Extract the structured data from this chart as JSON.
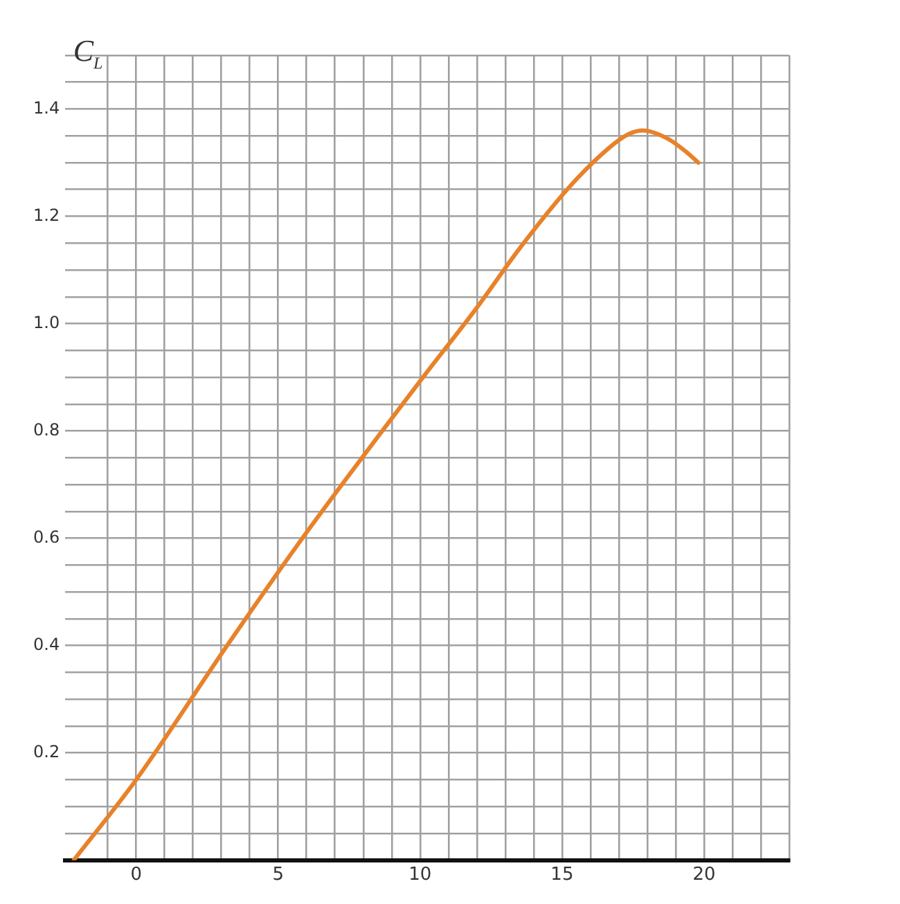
{
  "chart_data": {
    "type": "line",
    "ylabel": "C$_{L}$",
    "x": [
      -2.2,
      0,
      3.2,
      5.85,
      10.1,
      12,
      13.5,
      15.26,
      16.64,
      17.33,
      17.85,
      18.71,
      19.4,
      19.8
    ],
    "series": [
      {
        "color": "#e8822a",
        "values": [
          0,
          0.15,
          0.4,
          0.6,
          0.9,
          1.03,
          1.14,
          1.255,
          1.327,
          1.353,
          1.36,
          1.345,
          1.319,
          1.3
        ]
      }
    ],
    "xlim": [
      -2.5,
      23
    ],
    "xticks": [
      {
        "value": -1,
        "label": null
      },
      0,
      {
        "value": 1,
        "label": null
      },
      {
        "value": 2,
        "label": null
      },
      {
        "value": 3,
        "label": null
      },
      {
        "value": 4,
        "label": null
      },
      5,
      {
        "value": 6,
        "label": null
      },
      {
        "value": 7,
        "label": null
      },
      {
        "value": 8,
        "label": null
      },
      {
        "value": 9,
        "label": null
      },
      10,
      {
        "value": 11,
        "label": null
      },
      {
        "value": 12,
        "label": null
      },
      {
        "value": 13,
        "label": null
      },
      {
        "value": 14,
        "label": null
      },
      15,
      {
        "value": 16,
        "label": null
      },
      {
        "value": 17,
        "label": null
      },
      {
        "value": 18,
        "label": null
      },
      {
        "value": 19,
        "label": null
      },
      20,
      {
        "value": 21,
        "label": null
      },
      {
        "value": 22,
        "label": null
      },
      {
        "value": 23,
        "label": null
      }
    ],
    "ylim": [
      0,
      1.5
    ],
    "yticks": [
      {
        "value": 0,
        "label": null
      },
      {
        "value": 0.05,
        "label": null
      },
      {
        "value": 0.1,
        "label": null
      },
      {
        "value": 0.15,
        "label": null
      },
      0.2,
      {
        "value": 0.25,
        "label": null
      },
      {
        "value": 0.3,
        "label": null
      },
      {
        "value": 0.35,
        "label": null
      },
      0.4,
      {
        "value": 0.45,
        "label": null
      },
      {
        "value": 0.5,
        "label": null
      },
      {
        "value": 0.55,
        "label": null
      },
      0.6,
      {
        "value": 0.65,
        "label": null
      },
      {
        "value": 0.7,
        "label": null
      },
      {
        "value": 0.75,
        "label": null
      },
      0.8,
      {
        "value": 0.85,
        "label": null
      },
      {
        "value": 0.9,
        "label": null
      },
      {
        "value": 0.95,
        "label": null
      },
      {
        "value": 1,
        "label": "1.0"
      },
      {
        "value": 1.05,
        "label": null
      },
      {
        "value": 1.1,
        "label": null
      },
      {
        "value": 1.15,
        "label": null
      },
      1.2,
      {
        "value": 1.25,
        "label": null
      },
      {
        "value": 1.3,
        "label": null
      },
      {
        "value": 1.35,
        "label": null
      },
      1.4,
      {
        "value": 1.45,
        "label": null
      },
      {
        "value": 1.5,
        "label": null
      }
    ],
    "grid": true,
    "marker": "none",
    "line_style": "solid",
    "legend": false
  }
}
